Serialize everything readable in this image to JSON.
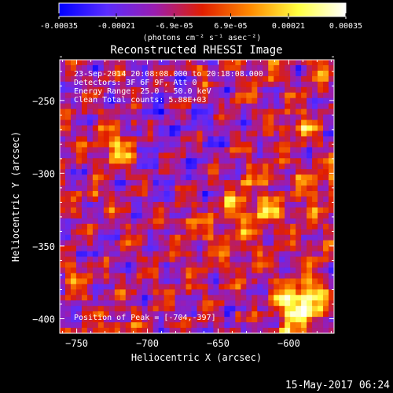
{
  "chart_data": {
    "type": "heatmap",
    "title": "Reconstructed RHESSI Image",
    "colorbar": {
      "range": [
        -0.00035,
        0.00035
      ],
      "tick_labels": [
        "-0.00035",
        "-0.00021",
        "-6.9e-05",
        "6.9e-05",
        "0.00021",
        "0.00035"
      ],
      "tick_values": [
        -0.00035,
        -0.00021,
        -6.9e-05,
        6.9e-05,
        0.00021,
        0.00035
      ],
      "unit_label": "(photons cm⁻² s⁻¹ asec⁻²)",
      "colors": [
        "#0000ff",
        "#5a2cff",
        "#9a1db0",
        "#e11e00",
        "#ff8a00",
        "#ffff40",
        "#ffffff"
      ]
    },
    "xlabel": "Heliocentric X (arcsec)",
    "ylabel": "Heliocentric Y (arcsec)",
    "xlim": [
      -762,
      -568
    ],
    "ylim": [
      -410,
      -222
    ],
    "x_ticks": [
      -750,
      -700,
      -650,
      -600
    ],
    "y_ticks": [
      -400,
      -350,
      -300,
      -250
    ],
    "x_tick_labels": [
      "−750",
      "−700",
      "−650",
      "−600"
    ],
    "y_tick_labels": [
      "−400",
      "−350",
      "−300",
      "−250"
    ],
    "annotations": {
      "line1": "23-Sep-2014 20:08:08.000 to 20:18:08.000",
      "line2": "Detectors: 3F 6F 9F, Att 0",
      "line3": "Energy Range: 25.0 - 50.0 keV",
      "line4": "Clean    Total counts: 5.88E+03",
      "peak": "Position of Peak = [-704,-397]"
    },
    "peak_position": [
      -704,
      -397
    ]
  },
  "footer": {
    "timestamp": "15-May-2017 06:24"
  }
}
